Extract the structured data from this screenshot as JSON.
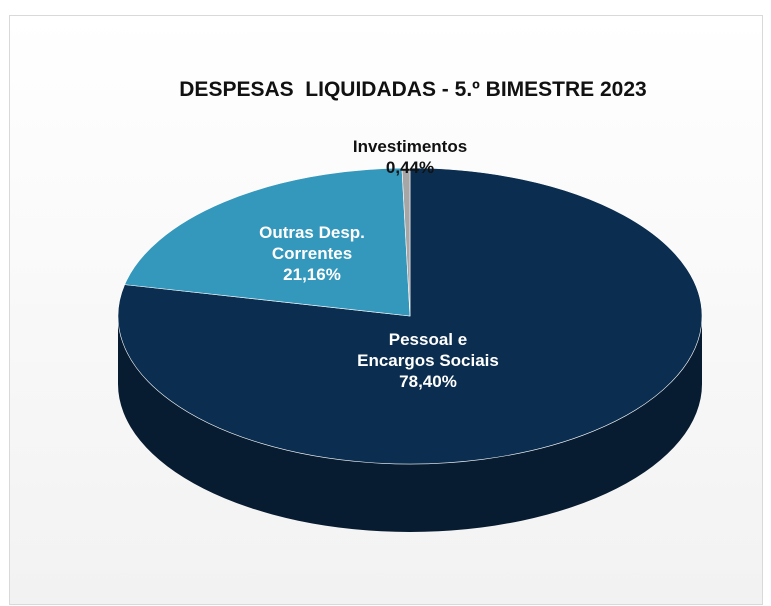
{
  "chart_data": {
    "type": "pie",
    "title": "DESPESAS  LIQUIDADAS - 5.º BIMESTRE 2023",
    "slices": [
      {
        "label_lines": [
          "Pessoal e",
          "Encargos Sociais"
        ],
        "value": 78.4,
        "value_label": "78,40%",
        "color": "#0b2d4f",
        "label_color": "#ffffff"
      },
      {
        "label_lines": [
          "Outras Desp.",
          "Correntes"
        ],
        "value": 21.16,
        "value_label": "21,16%",
        "color": "#3497bc",
        "label_color": "#ffffff"
      },
      {
        "label_lines": [
          "Investimentos"
        ],
        "value": 0.44,
        "value_label": "0,44%",
        "color": "#a6a6a6",
        "label_color": "#111111"
      }
    ],
    "legend": "none",
    "style": "3d"
  },
  "colors": {
    "background": "#f2f2f2",
    "border": "#d9d9d9"
  }
}
